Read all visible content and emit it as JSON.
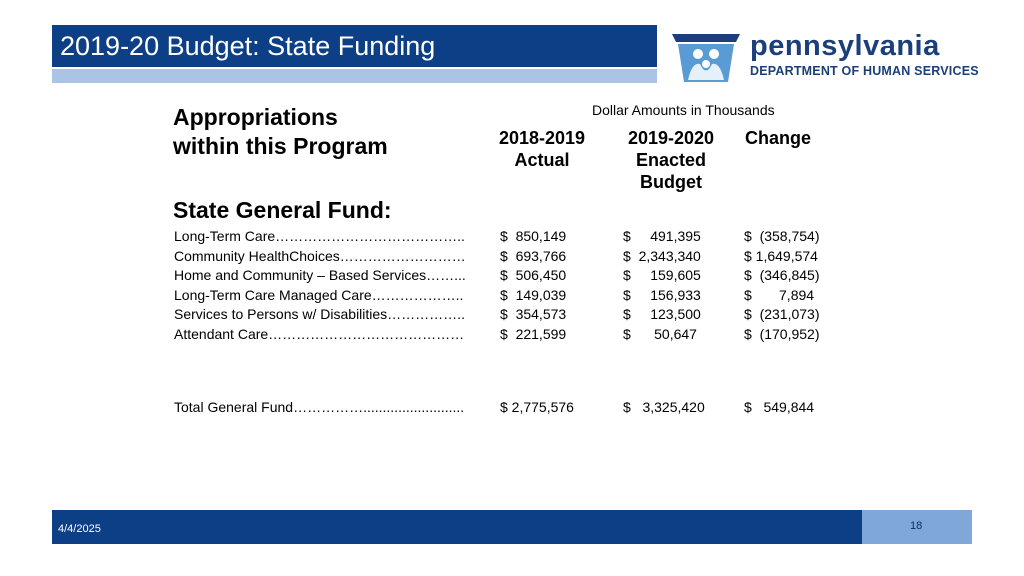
{
  "title": "2019-20 Budget: State Funding",
  "logo": {
    "name": "pennsylvania",
    "department": "DEPARTMENT OF HUMAN SERVICES",
    "emblem_icon": "keystone-family-icon",
    "colors": {
      "dark": "#1b3f7a",
      "light": "#5b9bd5"
    }
  },
  "heading": {
    "line1": "Appropriations",
    "line2": "within this Program"
  },
  "note": "Dollar Amounts in Thousands",
  "columns": [
    {
      "lines": [
        "2018-2019",
        "Actual"
      ]
    },
    {
      "lines": [
        "2019-2020",
        "Enacted",
        "Budget"
      ]
    },
    {
      "lines": [
        "Change"
      ]
    }
  ],
  "fund_heading": "State General Fund:",
  "rows": [
    {
      "label": "Long-Term Care…………………………………..",
      "actual": "$  850,149",
      "enacted": "$     491,395",
      "change": "$  (358,754)"
    },
    {
      "label": "Community HealthChoices………………………",
      "actual": "$  693,766",
      "enacted": "$  2,343,340",
      "change": "$ 1,649,574"
    },
    {
      "label": "Home and Community – Based Services……...",
      "actual": "$  506,450",
      "enacted": "$     159,605",
      "change": "$  (346,845)"
    },
    {
      "label": "Long-Term Care Managed Care………………..",
      "actual": "$  149,039",
      "enacted": "$     156,933",
      "change": "$       7,894"
    },
    {
      "label": "Services to Persons w/ Disabilities……………..",
      "actual": "$  354,573",
      "enacted": "$     123,500",
      "change": "$  (231,073)"
    },
    {
      "label": "Attendant Care……………………………………",
      "actual": "$  221,599",
      "enacted": "$      50,647",
      "change": "$  (170,952)"
    }
  ],
  "total": {
    "label": "Total General Fund……………..........................",
    "actual": "$ 2,775,576",
    "enacted": "$   3,325,420",
    "change": "$   549,844"
  },
  "footer": {
    "date": "4/4/2025",
    "page": "18"
  }
}
